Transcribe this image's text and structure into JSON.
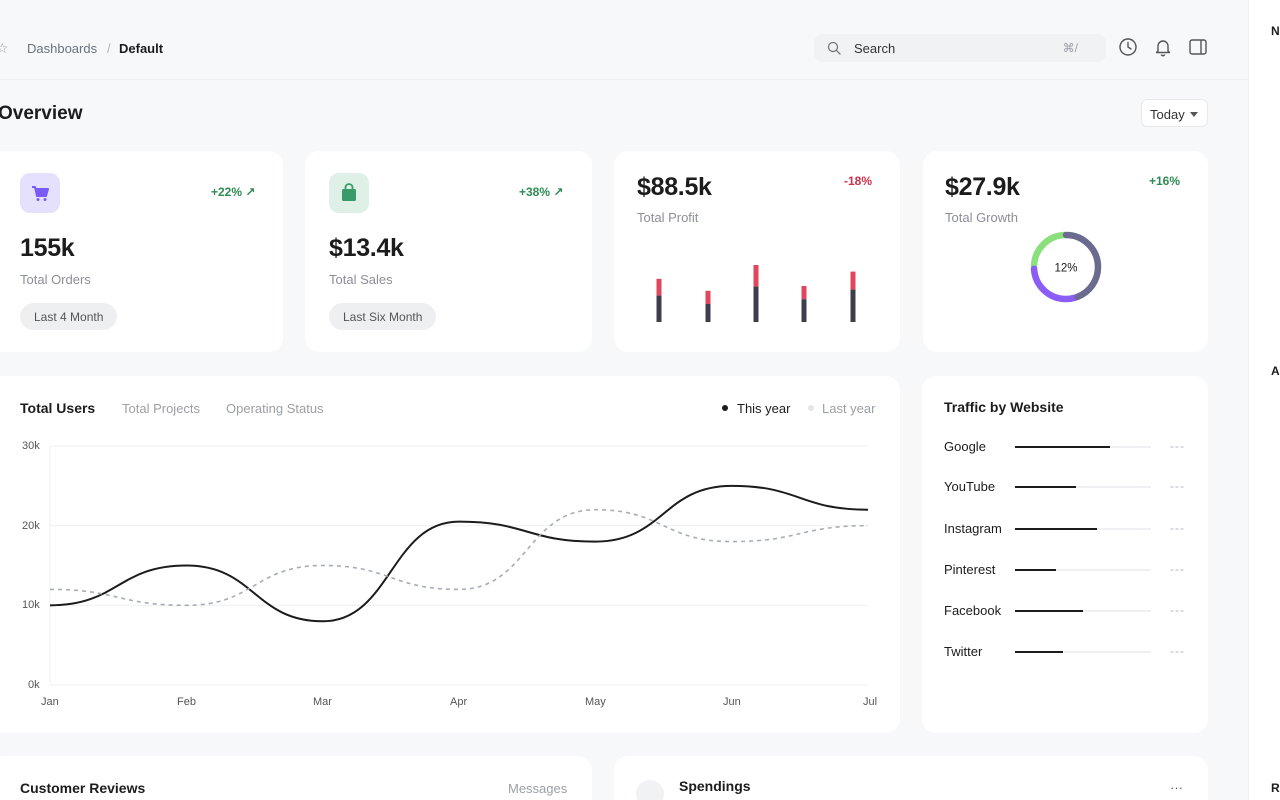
{
  "breadcrumb": {
    "parent": "Dashboards",
    "separator": "/",
    "current": "Default"
  },
  "search": {
    "placeholder": "Search",
    "shortcut": "⌘/"
  },
  "page_title": "Overview",
  "period_select": {
    "value": "Today"
  },
  "stats": {
    "orders": {
      "delta": "+22% ↗",
      "value": "155k",
      "label": "Total Orders",
      "pill": "Last 4 Month",
      "icon": "cart-icon",
      "icon_bg": "#e5e0fb",
      "icon_color": "#7a5af8"
    },
    "sales": {
      "delta": "+38% ↗",
      "value": "$13.4k",
      "label": "Total Sales",
      "pill": "Last Six Month",
      "icon": "bag-icon",
      "icon_bg": "#dff1e7",
      "icon_color": "#3a9b6a"
    },
    "profit": {
      "delta": "-18%",
      "value": "$88.5k",
      "label": "Total Profit",
      "delta_color": "#d0314a"
    },
    "growth": {
      "delta": "+16%",
      "value": "$27.9k",
      "label": "Total Growth",
      "donut_label": "12%"
    }
  },
  "profit_bars": [
    {
      "total": 0.72,
      "top": 0.28
    },
    {
      "total": 0.52,
      "top": 0.22
    },
    {
      "total": 0.95,
      "top": 0.36
    },
    {
      "total": 0.6,
      "top": 0.22
    },
    {
      "total": 0.84,
      "top": 0.3
    }
  ],
  "growth_donut": {
    "segments": [
      {
        "value": 0.45,
        "color": "#6b6b8f"
      },
      {
        "value": 0.3,
        "color": "#8b5cf6"
      },
      {
        "value": 0.25,
        "color": "#8be07d"
      }
    ]
  },
  "users_tabs": [
    "Total Users",
    "Total Projects",
    "Operating Status"
  ],
  "legend": {
    "this_year": "This year",
    "last_year": "Last year"
  },
  "chart_data": {
    "type": "line",
    "x": [
      "Jan",
      "Feb",
      "Mar",
      "Apr",
      "May",
      "Jun",
      "Jul"
    ],
    "yticks": [
      "30k",
      "20k",
      "10k",
      "0k"
    ],
    "ylim": [
      0,
      30000
    ],
    "series": [
      {
        "name": "This year",
        "style": "solid",
        "color": "#1c1c1c",
        "points": [
          [
            0,
            10000
          ],
          [
            1,
            15000
          ],
          [
            2,
            8000
          ],
          [
            3,
            20500
          ],
          [
            4,
            18000
          ],
          [
            5,
            25000
          ],
          [
            6,
            22000
          ]
        ]
      },
      {
        "name": "Last year",
        "style": "dashed",
        "color": "#a8adb4",
        "points": [
          [
            0,
            12000
          ],
          [
            1,
            10000
          ],
          [
            2,
            15000
          ],
          [
            3,
            12000
          ],
          [
            4,
            22000
          ],
          [
            5,
            18000
          ],
          [
            6,
            20000
          ]
        ]
      }
    ]
  },
  "traffic": {
    "title": "Traffic by Website",
    "items": [
      {
        "name": "Google",
        "value": 0.7,
        "trail": "---"
      },
      {
        "name": "YouTube",
        "value": 0.45,
        "trail": "---"
      },
      {
        "name": "Instagram",
        "value": 0.6,
        "trail": "---"
      },
      {
        "name": "Pinterest",
        "value": 0.3,
        "trail": "---"
      },
      {
        "name": "Facebook",
        "value": 0.5,
        "trail": "---"
      },
      {
        "name": "Twitter",
        "value": 0.35,
        "trail": "---"
      }
    ]
  },
  "reviews": {
    "title": "Customer Reviews",
    "link": "Messages"
  },
  "spendings": {
    "title": "Spendings",
    "more": "···"
  },
  "right_panel": {
    "letters": [
      "N",
      "A",
      "R"
    ]
  }
}
